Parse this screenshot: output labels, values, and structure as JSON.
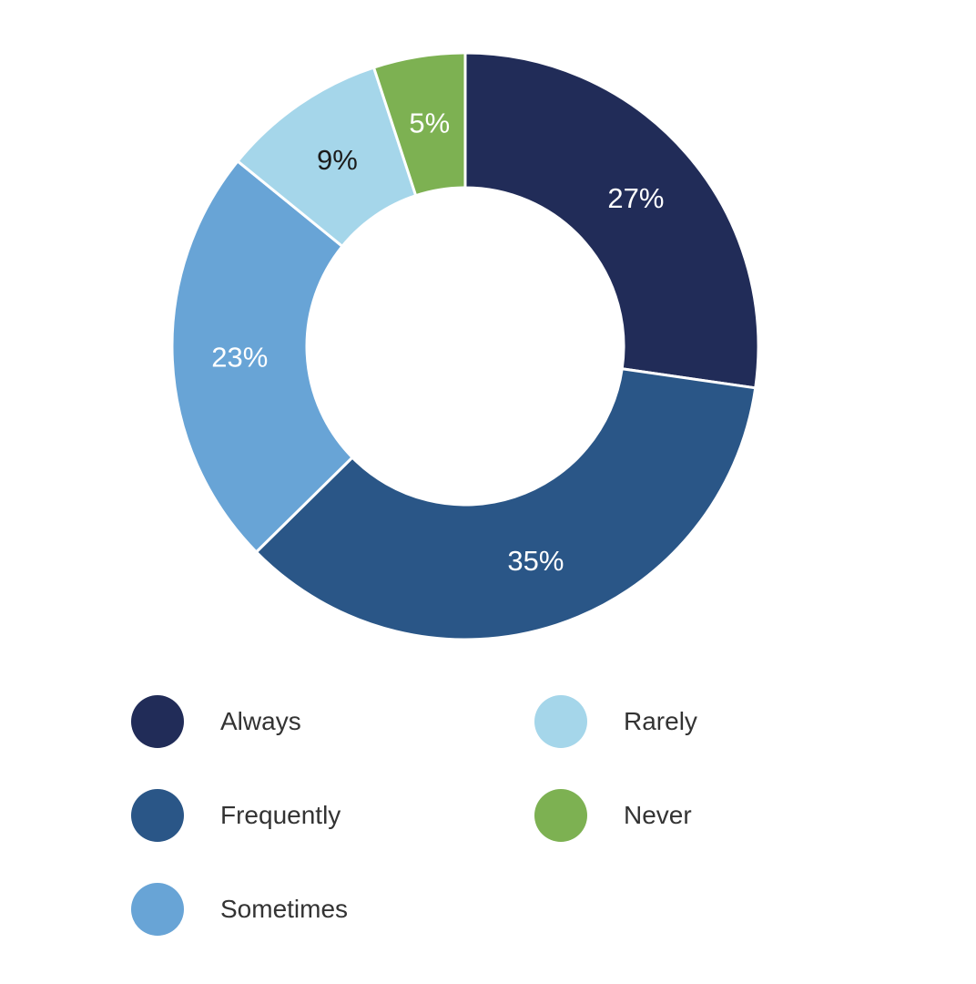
{
  "chart_data": {
    "type": "pie",
    "title": "",
    "donut": true,
    "categories": [
      "Always",
      "Frequently",
      "Sometimes",
      "Rarely",
      "Never"
    ],
    "values": [
      27,
      35,
      23,
      9,
      5
    ],
    "labels": [
      "27%",
      "35%",
      "23%",
      "9%",
      "5%"
    ],
    "colors": [
      "#212c58",
      "#2a5687",
      "#68a4d6",
      "#a5d6ea",
      "#7db152"
    ],
    "label_colors": [
      "#ffffff",
      "#ffffff",
      "#ffffff",
      "#1b1b1b",
      "#ffffff"
    ],
    "legend_placement": "bottom"
  },
  "legend": {
    "items": [
      {
        "label": "Always",
        "color": "#212c58"
      },
      {
        "label": "Frequently",
        "color": "#2a5687"
      },
      {
        "label": "Sometimes",
        "color": "#68a4d6"
      },
      {
        "label": "Rarely",
        "color": "#a5d6ea"
      },
      {
        "label": "Never",
        "color": "#7db152"
      }
    ]
  }
}
